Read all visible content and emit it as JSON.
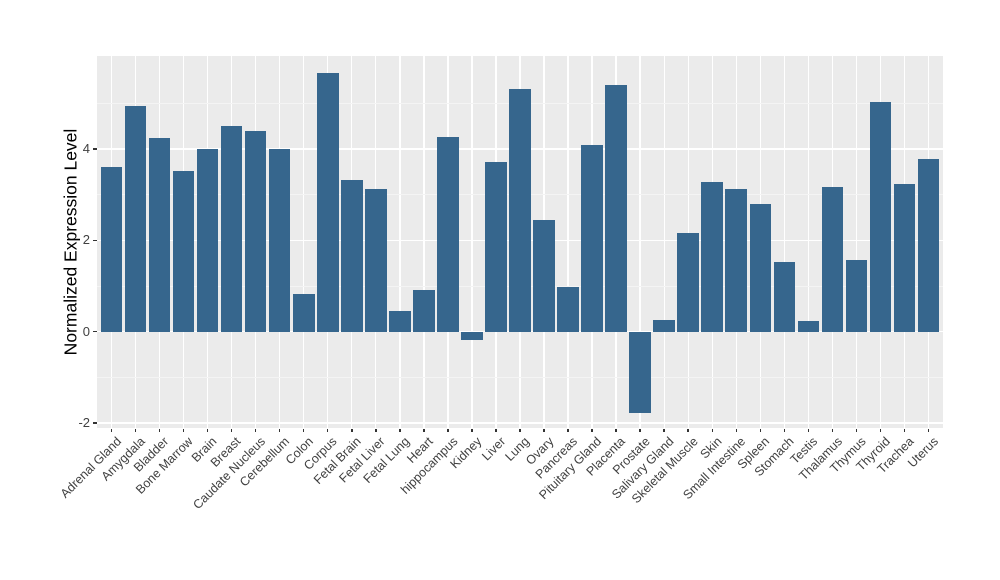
{
  "chart_data": {
    "type": "bar",
    "title": "",
    "xlabel": "",
    "ylabel": "Normalized Expression Level",
    "categories": [
      "Adrenal Gland",
      "Amygdala",
      "Bladder",
      "Bone Marrow",
      "Brain",
      "Breast",
      "Caudate Nucleus",
      "Cerebellum",
      "Colon",
      "Corpus",
      "Fetal Brain",
      "Fetal Liver",
      "Fetal Lung",
      "Heart",
      "hippocampus",
      "Kidney",
      "Liver",
      "Lung",
      "Ovary",
      "Pancreas",
      "Pituitary Gland",
      "Placenta",
      "Prostate",
      "Salivary Gland",
      "Skeletal Muscle",
      "Skin",
      "Small Intestine",
      "Spleen",
      "Stomach",
      "Testis",
      "Thalamus",
      "Thymus",
      "Thyroid",
      "Trachea",
      "Uterus"
    ],
    "values": [
      3.61,
      4.94,
      4.24,
      3.53,
      4.0,
      4.5,
      4.39,
      4.0,
      0.83,
      5.66,
      3.32,
      3.13,
      0.46,
      0.92,
      4.27,
      -0.18,
      3.72,
      5.31,
      2.44,
      0.99,
      4.1,
      5.4,
      -1.78,
      0.25,
      2.16,
      3.28,
      3.13,
      2.8,
      1.52,
      0.24,
      3.17,
      1.58,
      5.03,
      3.24,
      3.79
    ],
    "yticks": [
      -2,
      0,
      2,
      4
    ],
    "ytick_labels": [
      "-2",
      "0",
      "2",
      "4"
    ],
    "minor_gridlines": [
      -1,
      1,
      3,
      5
    ],
    "ylim": [
      -2.11,
      6.04
    ],
    "grid": "on",
    "legend": "none",
    "bar_color": "#36668D",
    "panel_bg": "#EBEBEB",
    "major_grid_color": "#FFFFFF",
    "minor_grid_color": "#F4F4F4",
    "tick_text_color": "#404040",
    "axis_title_color": "#000000"
  }
}
